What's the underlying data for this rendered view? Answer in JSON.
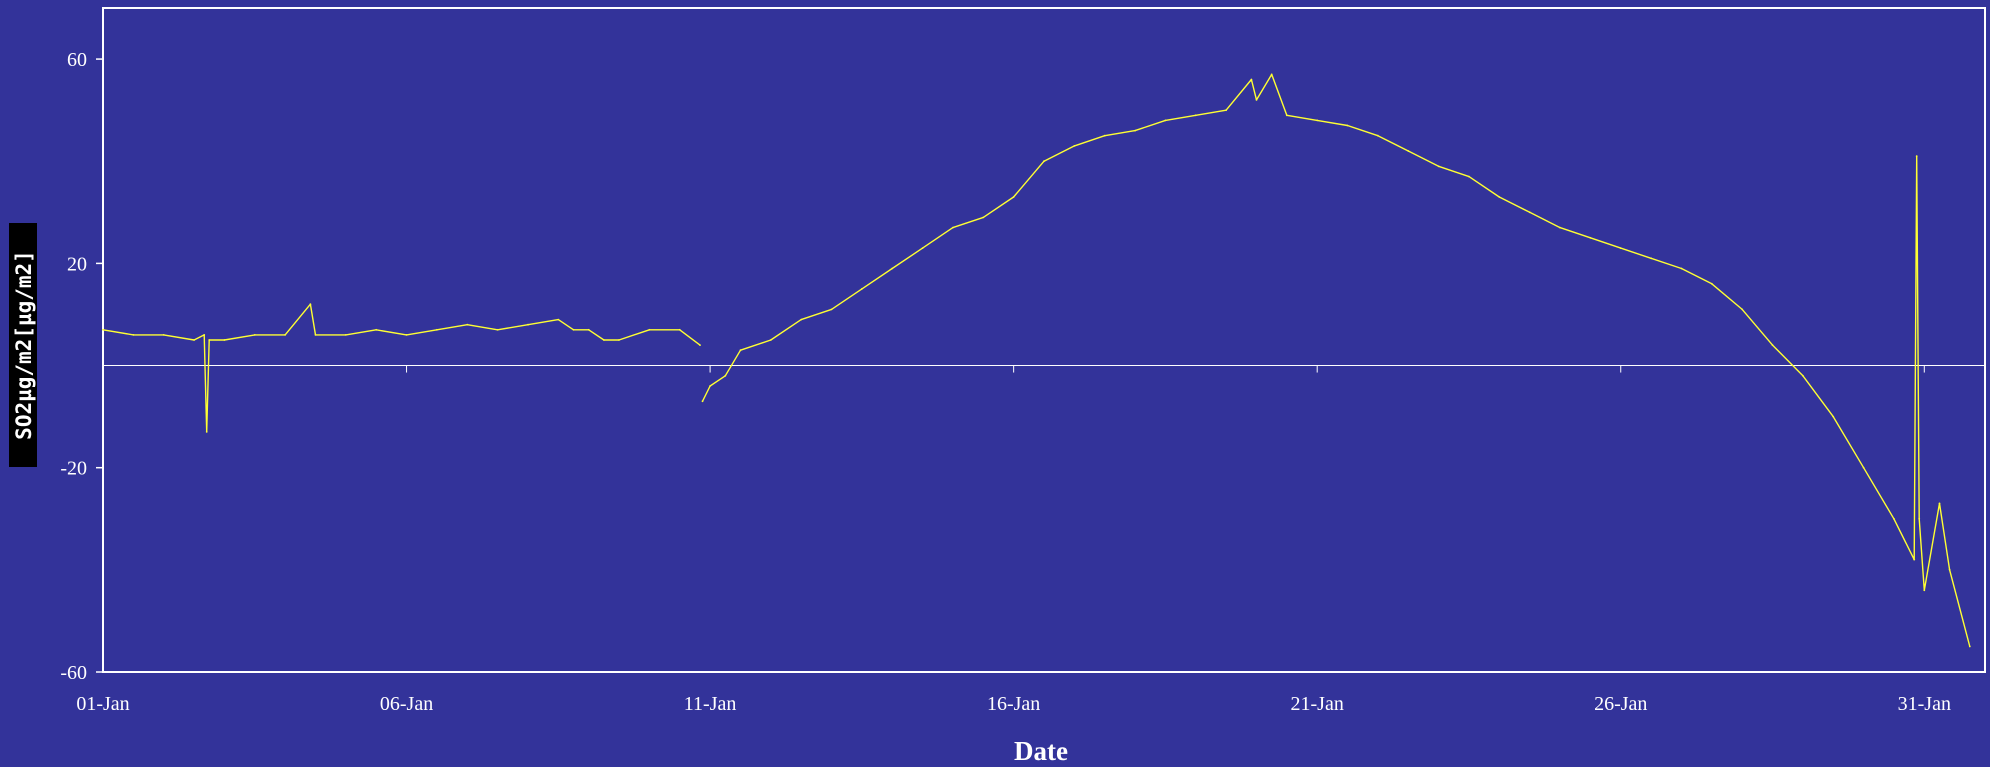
{
  "chart_data": {
    "type": "line",
    "title": "",
    "xlabel": "Date",
    "ylabel": "SO2µg/m2[µg/m2]",
    "xlim": [
      "2001-01-01",
      "2001-01-31"
    ],
    "ylim": [
      -60,
      70
    ],
    "y_ticks": [
      -60,
      -20,
      20,
      60
    ],
    "x_tick_labels": [
      "01-Jan",
      "06-Jan",
      "11-Jan",
      "16-Jan",
      "21-Jan",
      "26-Jan",
      "31-Jan"
    ],
    "x_tick_dates": [
      "2001-01-01",
      "2001-01-06",
      "2001-01-11",
      "2001-01-16",
      "2001-01-21",
      "2001-01-26",
      "2001-01-31"
    ],
    "grid": false,
    "zero_line": true,
    "legend": "none",
    "colors": {
      "background": "#33339a",
      "series": "#ffff33",
      "axes": "#ffffff",
      "ylabel_bg": "#000000"
    },
    "series": [
      {
        "segments": [
          [
            [
              "2001-01-01",
              7
            ],
            [
              "2001-01-01T12:00",
              6
            ],
            [
              "2001-01-02",
              6
            ],
            [
              "2001-01-02T12:00",
              5
            ],
            [
              "2001-01-02T16:00",
              6
            ],
            [
              "2001-01-02T17:00",
              -13
            ],
            [
              "2001-01-02T18:00",
              5
            ],
            [
              "2001-01-03",
              5
            ],
            [
              "2001-01-03T12:00",
              6
            ],
            [
              "2001-01-04",
              6
            ],
            [
              "2001-01-04T10:00",
              12
            ],
            [
              "2001-01-04T12:00",
              6
            ],
            [
              "2001-01-05",
              6
            ],
            [
              "2001-01-05T12:00",
              7
            ],
            [
              "2001-01-06",
              6
            ],
            [
              "2001-01-06T12:00",
              7
            ],
            [
              "2001-01-07",
              8
            ],
            [
              "2001-01-07T12:00",
              7
            ],
            [
              "2001-01-08",
              8
            ],
            [
              "2001-01-08T12:00",
              9
            ],
            [
              "2001-01-08T18:00",
              7
            ],
            [
              "2001-01-09",
              7
            ],
            [
              "2001-01-09T06:00",
              5
            ],
            [
              "2001-01-09T12:00",
              5
            ],
            [
              "2001-01-10",
              7
            ],
            [
              "2001-01-10T12:00",
              7
            ],
            [
              "2001-01-10T20:00",
              4
            ]
          ],
          [
            [
              "2001-01-10T21:00",
              -7
            ],
            [
              "2001-01-11",
              -4
            ],
            [
              "2001-01-11T06:00",
              -2
            ],
            [
              "2001-01-11T12:00",
              3
            ],
            [
              "2001-01-12",
              5
            ],
            [
              "2001-01-12T12:00",
              9
            ],
            [
              "2001-01-13",
              11
            ],
            [
              "2001-01-13T12:00",
              15
            ],
            [
              "2001-01-14",
              19
            ],
            [
              "2001-01-14T12:00",
              23
            ],
            [
              "2001-01-15",
              27
            ],
            [
              "2001-01-15T12:00",
              29
            ],
            [
              "2001-01-16",
              33
            ],
            [
              "2001-01-16T12:00",
              40
            ],
            [
              "2001-01-17",
              43
            ],
            [
              "2001-01-17T12:00",
              45
            ],
            [
              "2001-01-18",
              46
            ],
            [
              "2001-01-18T12:00",
              48
            ],
            [
              "2001-01-19",
              49
            ],
            [
              "2001-01-19T12:00",
              50
            ],
            [
              "2001-01-19T22:00",
              56
            ],
            [
              "2001-01-20",
              52
            ],
            [
              "2001-01-20T06:00",
              57
            ],
            [
              "2001-01-20T12:00",
              49
            ],
            [
              "2001-01-21",
              48
            ],
            [
              "2001-01-21T12:00",
              47
            ],
            [
              "2001-01-22",
              45
            ],
            [
              "2001-01-22T12:00",
              42
            ],
            [
              "2001-01-23",
              39
            ],
            [
              "2001-01-23T12:00",
              37
            ],
            [
              "2001-01-24",
              33
            ],
            [
              "2001-01-24T12:00",
              30
            ],
            [
              "2001-01-25",
              27
            ],
            [
              "2001-01-25T12:00",
              25
            ],
            [
              "2001-01-26",
              23
            ],
            [
              "2001-01-26T12:00",
              21
            ],
            [
              "2001-01-27",
              19
            ],
            [
              "2001-01-27T12:00",
              16
            ],
            [
              "2001-01-28",
              11
            ],
            [
              "2001-01-28T12:00",
              4
            ],
            [
              "2001-01-29",
              -2
            ],
            [
              "2001-01-29T12:00",
              -10
            ],
            [
              "2001-01-30",
              -20
            ],
            [
              "2001-01-30T12:00",
              -30
            ],
            [
              "2001-01-30T20:00",
              -38
            ],
            [
              "2001-01-30T21:00",
              41
            ],
            [
              "2001-01-30T22:00",
              -30
            ],
            [
              "2001-01-31",
              -44
            ],
            [
              "2001-01-31T06:00",
              -27
            ],
            [
              "2001-01-31T10:00",
              -40
            ],
            [
              "2001-01-31T18:00",
              -55
            ]
          ]
        ]
      }
    ]
  }
}
